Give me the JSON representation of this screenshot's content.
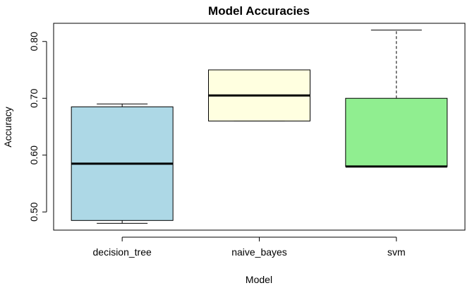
{
  "chart_data": {
    "type": "boxplot",
    "title": "Model Accuracies",
    "xlabel": "Model",
    "ylabel": "Accuracy",
    "ylim": [
      0.468,
      0.832
    ],
    "yticks": [
      0.5,
      0.6,
      0.7,
      0.8
    ],
    "ytick_labels": [
      "0.50",
      "0.60",
      "0.70",
      "0.80"
    ],
    "categories": [
      "decision_tree",
      "naive_bayes",
      "svm"
    ],
    "boxes": [
      {
        "category": "decision_tree",
        "min": 0.48,
        "q1": 0.485,
        "median": 0.585,
        "q3": 0.685,
        "max": 0.69,
        "color": "#ADD8E6"
      },
      {
        "category": "naive_bayes",
        "min": 0.66,
        "q1": 0.66,
        "median": 0.705,
        "q3": 0.75,
        "max": 0.75,
        "color": "#FFFFE0"
      },
      {
        "category": "svm",
        "min": 0.58,
        "q1": 0.58,
        "median": 0.58,
        "q3": 0.7,
        "max": 0.82,
        "color": "#90EE90"
      }
    ],
    "grid": false
  }
}
